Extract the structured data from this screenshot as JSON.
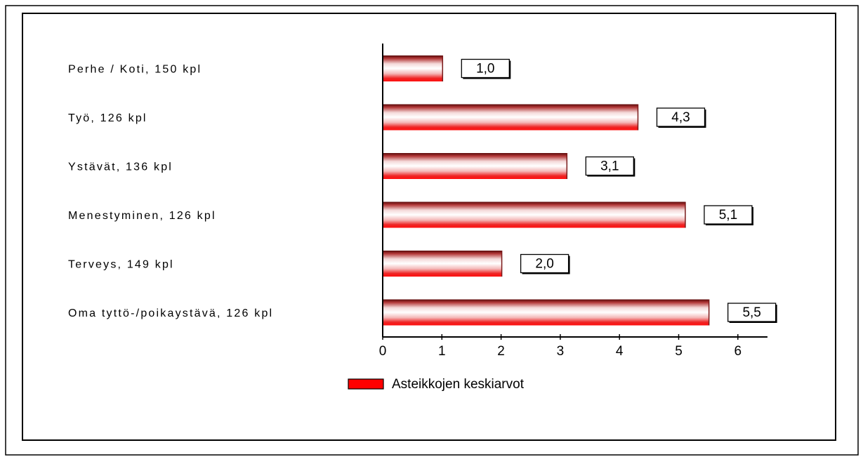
{
  "chart_data": {
    "type": "bar",
    "orientation": "horizontal",
    "title": "",
    "xlabel": "",
    "ylabel": "",
    "categories": [
      "Perhe / Koti, 150 kpl",
      "Työ, 126 kpl",
      "Ystävät, 136 kpl",
      "Menestyminen, 126 kpl",
      "Terveys, 149 kpl",
      "Oma tyttö-/poikaystävä, 126 kpl"
    ],
    "series": [
      {
        "name": "Asteikkojen keskiarvot",
        "values": [
          1.0,
          4.3,
          3.1,
          5.1,
          2.0,
          5.5
        ],
        "labels": [
          "1,0",
          "4,3",
          "3,1",
          "5,1",
          "2,0",
          "5,5"
        ],
        "color": "#ff0000"
      }
    ],
    "xlim": [
      0,
      6.5
    ],
    "xticks": [
      0,
      1,
      2,
      3,
      4,
      5,
      6
    ],
    "xtick_labels": [
      "0",
      "1",
      "2",
      "3",
      "4",
      "5",
      "6"
    ],
    "grid": false,
    "legend": "bottom"
  }
}
